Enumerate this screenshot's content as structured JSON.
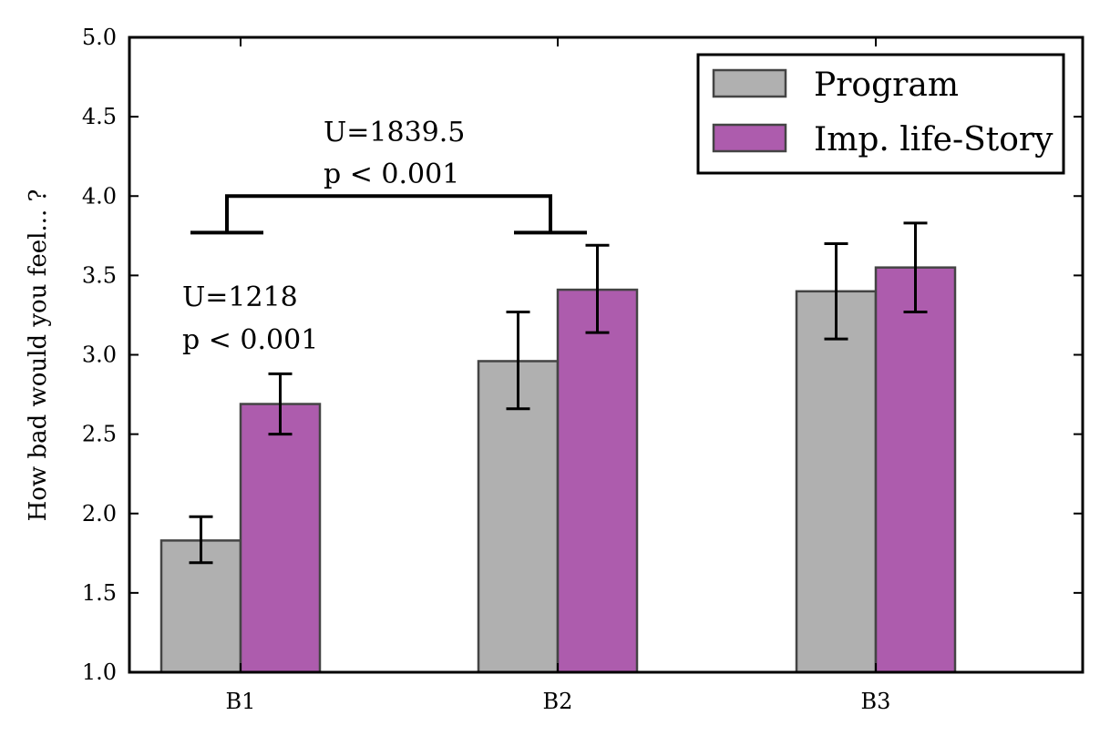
{
  "chart_data": {
    "type": "bar",
    "title": "",
    "xlabel": "",
    "ylabel": "How bad would you feel... ?",
    "ylim": [
      1.0,
      5.0
    ],
    "yticks": [
      "1.0",
      "1.5",
      "2.0",
      "2.5",
      "3.0",
      "3.5",
      "4.0",
      "4.5",
      "5.0"
    ],
    "categories": [
      "B1",
      "B2",
      "B3"
    ],
    "series": [
      {
        "name": "Program",
        "color": "#b0b0b0",
        "values": [
          1.83,
          2.96,
          3.4
        ],
        "err_low": [
          1.69,
          2.66,
          3.1
        ],
        "err_high": [
          1.98,
          3.27,
          3.7
        ]
      },
      {
        "name": "Imp. life-Story",
        "color": "#ad5cad",
        "values": [
          2.69,
          3.41,
          3.55
        ],
        "err_low": [
          2.5,
          3.14,
          3.27
        ],
        "err_high": [
          2.88,
          3.69,
          3.83
        ]
      }
    ],
    "legend_position": "top-right",
    "grid": false,
    "annotations": [
      {
        "lines": [
          "U=1218",
          "p < 0.001"
        ]
      },
      {
        "lines": [
          "U=1839.5",
          "p < 0.001"
        ]
      }
    ],
    "bracket": {
      "from": "B1",
      "to": "B2",
      "y": 4.0,
      "drop": 3.77
    }
  }
}
